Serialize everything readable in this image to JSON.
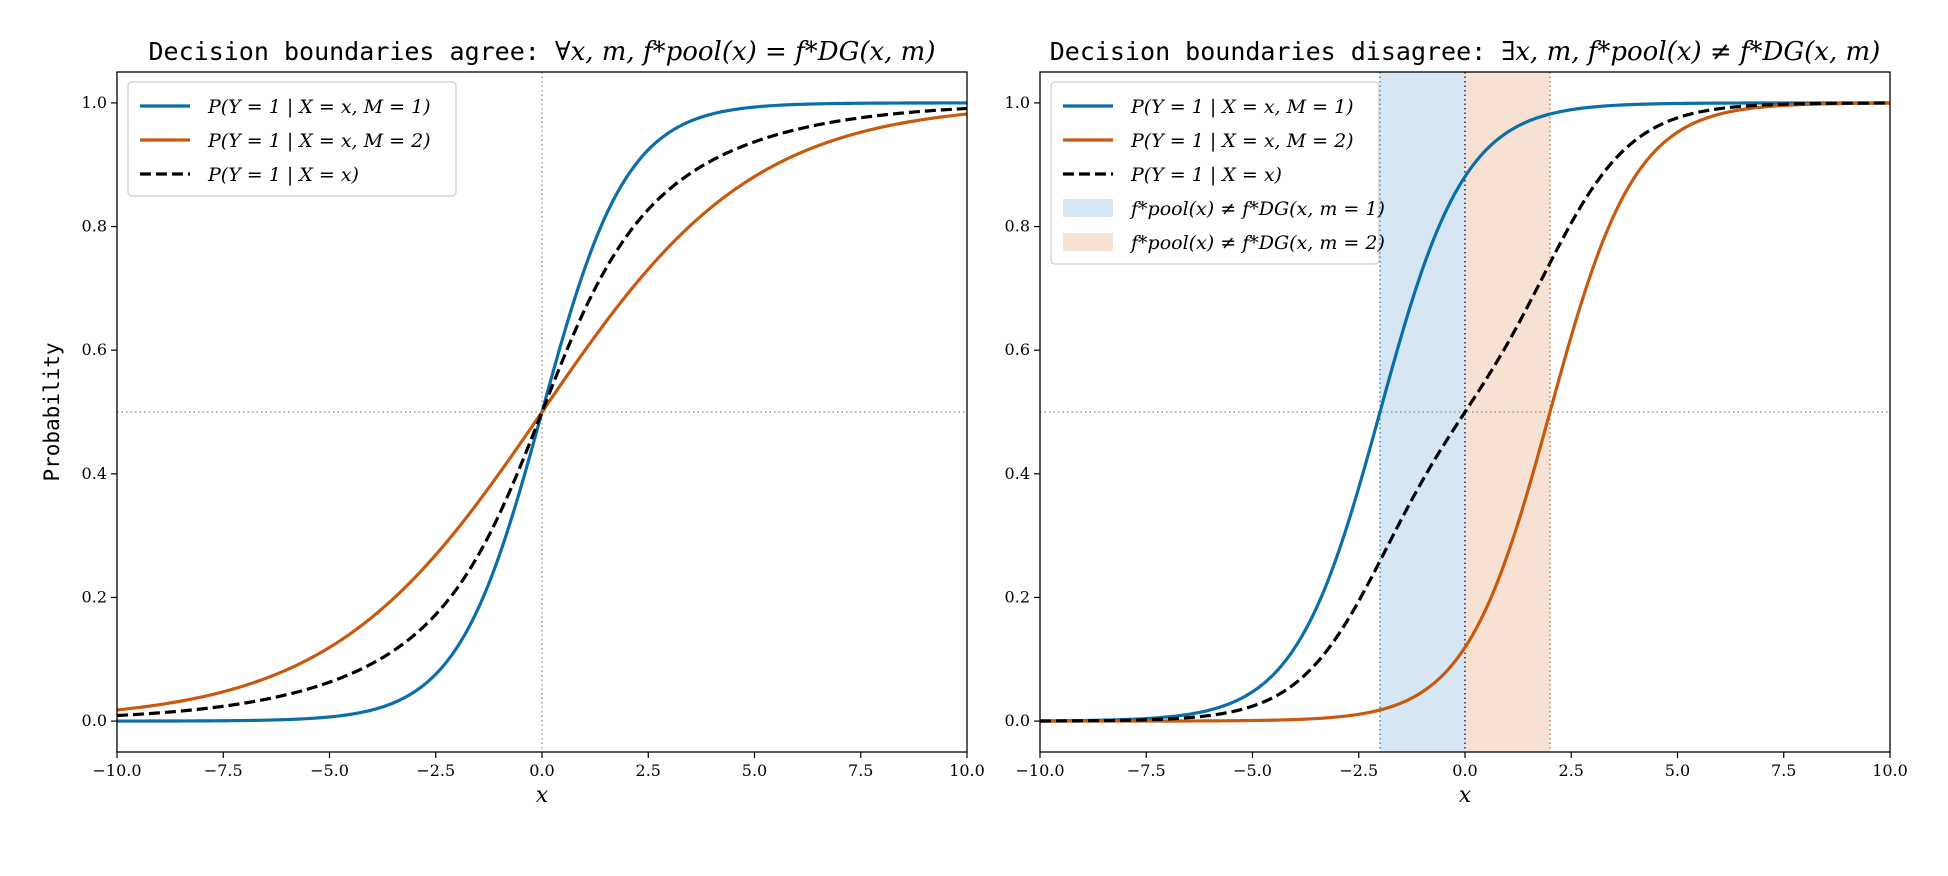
{
  "colors": {
    "m1": "#0a6fa8",
    "m2": "#c85a0f",
    "pooled": "#000000",
    "region1": "#d6e6f2",
    "region2": "#f7e1d3",
    "guide": "#888888"
  },
  "chart_data": [
    {
      "type": "line",
      "title": "Decision boundaries agree:",
      "title_math": "∀x, m,  f*pool(x) = f*DG(x, m)",
      "xlabel": "x",
      "ylabel": "Probability",
      "xlim": [
        -10,
        10
      ],
      "ylim": [
        -0.05,
        1.05
      ],
      "xticks": [
        -10,
        -7.5,
        -5,
        -2.5,
        0,
        2.5,
        5,
        7.5,
        10
      ],
      "xtick_labels": [
        "−10.0",
        "−7.5",
        "−5.0",
        "−2.5",
        "0.0",
        "2.5",
        "5.0",
        "7.5",
        "10.0"
      ],
      "yticks": [
        0,
        0.2,
        0.4,
        0.6,
        0.8,
        1.0
      ],
      "ytick_labels": [
        "0.0",
        "0.2",
        "0.4",
        "0.6",
        "0.8",
        "1.0"
      ],
      "hline": 0.5,
      "vlines": [
        0
      ],
      "legend_position": "upper-left",
      "series": [
        {
          "name": "P(Y = 1 | X = x, M = 1)",
          "key": "m1",
          "style": "solid",
          "center": 0,
          "slope": 1.0
        },
        {
          "name": "P(Y = 1 | X = x, M = 2)",
          "key": "m2",
          "style": "solid",
          "center": 0,
          "slope": 0.4
        },
        {
          "name": "P(Y = 1 | X = x)",
          "key": "pooled",
          "style": "dashed",
          "mix": true
        }
      ],
      "regions": []
    },
    {
      "type": "line",
      "title": "Decision boundaries disagree:",
      "title_math": "∃x, m,  f*pool(x) ≠ f*DG(x, m)",
      "xlabel": "x",
      "ylabel": "",
      "xlim": [
        -10,
        10
      ],
      "ylim": [
        -0.05,
        1.05
      ],
      "xticks": [
        -10,
        -7.5,
        -5,
        -2.5,
        0,
        2.5,
        5,
        7.5,
        10
      ],
      "xtick_labels": [
        "−10.0",
        "−7.5",
        "−5.0",
        "−2.5",
        "0.0",
        "2.5",
        "5.0",
        "7.5",
        "10.0"
      ],
      "yticks": [
        0,
        0.2,
        0.4,
        0.6,
        0.8,
        1.0
      ],
      "ytick_labels": [
        "0.0",
        "0.2",
        "0.4",
        "0.6",
        "0.8",
        "1.0"
      ],
      "hline": 0.5,
      "vlines": [
        -2,
        0,
        2
      ],
      "legend_position": "upper-left",
      "series": [
        {
          "name": "P(Y = 1 | X = x, M = 1)",
          "key": "m1",
          "style": "solid",
          "center": -2,
          "slope": 1.0
        },
        {
          "name": "P(Y = 1 | X = x, M = 2)",
          "key": "m2",
          "style": "solid",
          "center": 2,
          "slope": 1.0
        },
        {
          "name": "P(Y = 1 | X = x)",
          "key": "pooled",
          "style": "dashed",
          "mix": true
        }
      ],
      "regions": [
        {
          "name": "f*pool(x) ≠ f*DG(x, m = 1)",
          "key": "region1",
          "x0": -2,
          "x1": 0
        },
        {
          "name": "f*pool(x) ≠ f*DG(x, m = 2)",
          "key": "region2",
          "x0": 0,
          "x1": 2
        }
      ]
    }
  ]
}
